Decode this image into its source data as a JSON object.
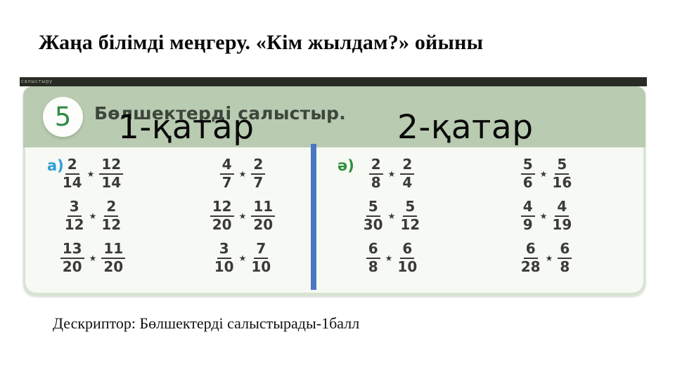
{
  "slide": {
    "title": "Жаңа білімді меңгеру. «Кім жылдам?» ойыны",
    "descriptor": "Дескриптор: Бөлшектерді салыстырады-1балл"
  },
  "overlay": {
    "row1": "1-қатар",
    "row2": "2-қатар"
  },
  "worksheet": {
    "topbar_text": "салыстыру",
    "task_number": "5",
    "task_title": "Бөлшектерді салыстыр.",
    "compare_symbol": "★",
    "sections": [
      {
        "label": "а)",
        "columns": [
          [
            {
              "left": [
                "2",
                "14"
              ],
              "right": [
                "12",
                "14"
              ]
            },
            {
              "left": [
                "3",
                "12"
              ],
              "right": [
                "2",
                "12"
              ]
            },
            {
              "left": [
                "13",
                "20"
              ],
              "right": [
                "11",
                "20"
              ]
            }
          ],
          [
            {
              "left": [
                "4",
                "7"
              ],
              "right": [
                "2",
                "7"
              ]
            },
            {
              "left": [
                "12",
                "20"
              ],
              "right": [
                "11",
                "20"
              ]
            },
            {
              "left": [
                "3",
                "10"
              ],
              "right": [
                "7",
                "10"
              ]
            }
          ]
        ]
      },
      {
        "label": "ә)",
        "columns": [
          [
            {
              "left": [
                "2",
                "8"
              ],
              "right": [
                "2",
                "4"
              ]
            },
            {
              "left": [
                "5",
                "30"
              ],
              "right": [
                "5",
                "12"
              ]
            },
            {
              "left": [
                "6",
                "8"
              ],
              "right": [
                "6",
                "10"
              ]
            }
          ],
          [
            {
              "left": [
                "5",
                "6"
              ],
              "right": [
                "5",
                "16"
              ]
            },
            {
              "left": [
                "4",
                "9"
              ],
              "right": [
                "4",
                "19"
              ]
            },
            {
              "left": [
                "6",
                "28"
              ],
              "right": [
                "6",
                "8"
              ]
            }
          ]
        ]
      }
    ]
  },
  "colors": {
    "header_green": "#b9cbb1",
    "body_bg": "#f7f9f5",
    "topbar_dark": "#282c24",
    "divider_blue": "#4a78c2",
    "label_a_blue": "#2d9fd8",
    "label_a2_green": "#2e8f3c",
    "number_green": "#2e8b45",
    "fraction_text": "#3a3a3a"
  }
}
